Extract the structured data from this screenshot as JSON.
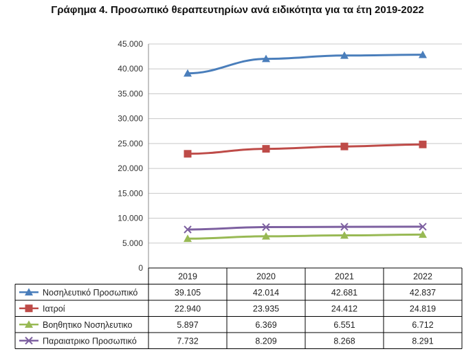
{
  "chart_data": {
    "type": "line",
    "title": "Γράφημα 4. Προσωπικό θεραπευτηρίων ανά ειδικότητα για τα έτη 2019-2022",
    "categories": [
      "2019",
      "2020",
      "2021",
      "2022"
    ],
    "y_ticks": [
      "0",
      "5.000",
      "10.000",
      "15.000",
      "20.000",
      "25.000",
      "30.000",
      "35.000",
      "40.000",
      "45.000"
    ],
    "ylim": [
      0,
      45000
    ],
    "grid": true,
    "legend": "data-table-below",
    "series": [
      {
        "name": "Νοσηλευτικό Προσωπικό",
        "marker": "triangle",
        "color": "#4a7ebb",
        "values": [
          39105,
          42014,
          42681,
          42837
        ],
        "labels": [
          "39.105",
          "42.014",
          "42.681",
          "42.837"
        ]
      },
      {
        "name": "Ιατροί",
        "marker": "square",
        "color": "#be4b48",
        "values": [
          22940,
          23935,
          24412,
          24819
        ],
        "labels": [
          "22.940",
          "23.935",
          "24.412",
          "24.819"
        ]
      },
      {
        "name": "Βοηθητικο Νοσηλευτικο",
        "marker": "triangle",
        "color": "#98b954",
        "values": [
          5897,
          6369,
          6551,
          6712
        ],
        "labels": [
          "5.897",
          "6.369",
          "6.551",
          "6.712"
        ]
      },
      {
        "name": "Παραιατρικο Προσωπικό",
        "marker": "x",
        "color": "#7d60a0",
        "values": [
          7732,
          8209,
          8268,
          8291
        ],
        "labels": [
          "7.732",
          "8.209",
          "8.268",
          "8.291"
        ]
      }
    ]
  }
}
